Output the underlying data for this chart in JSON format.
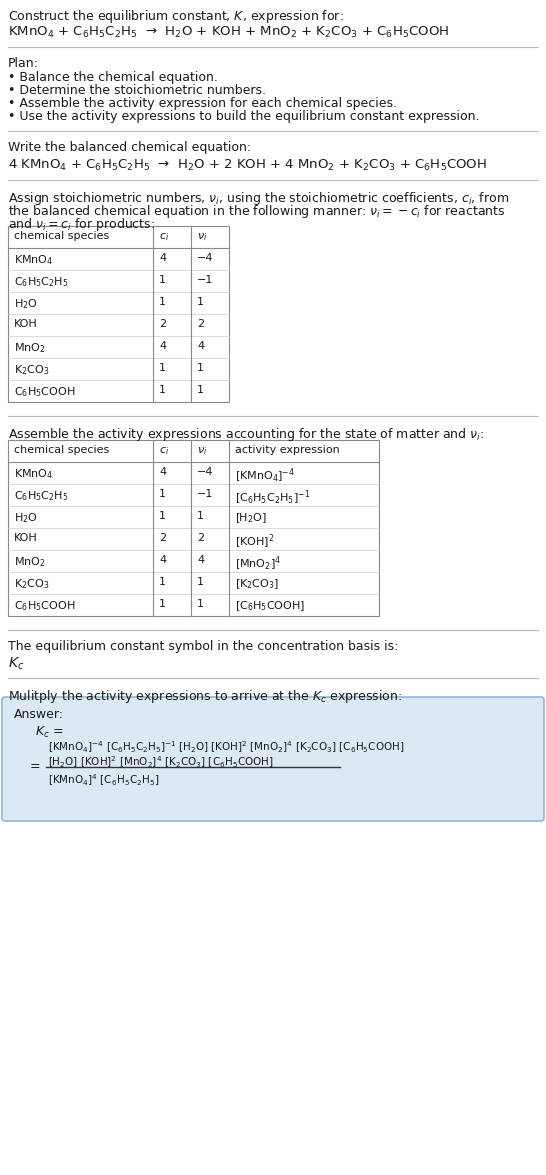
{
  "title_line1": "Construct the equilibrium constant, $K$, expression for:",
  "title_line2": "KMnO$_4$ + C$_6$H$_5$C$_2$H$_5$  →  H$_2$O + KOH + MnO$_2$ + K$_2$CO$_3$ + C$_6$H$_5$COOH",
  "plan_header": "Plan:",
  "plan_items": [
    "• Balance the chemical equation.",
    "• Determine the stoichiometric numbers.",
    "• Assemble the activity expression for each chemical species.",
    "• Use the activity expressions to build the equilibrium constant expression."
  ],
  "balanced_header": "Write the balanced chemical equation:",
  "balanced_eq": "4 KMnO$_4$ + C$_6$H$_5$C$_2$H$_5$  →  H$_2$O + 2 KOH + 4 MnO$_2$ + K$_2$CO$_3$ + C$_6$H$_5$COOH",
  "stoich_header1": "Assign stoichiometric numbers, $\\nu_i$, using the stoichiometric coefficients, $c_i$, from",
  "stoich_header2": "the balanced chemical equation in the following manner: $\\nu_i = -c_i$ for reactants",
  "stoich_header3": "and $\\nu_i = c_i$ for products:",
  "table1_headers": [
    "chemical species",
    "$c_i$",
    "$\\nu_i$"
  ],
  "table1_rows": [
    [
      "KMnO$_4$",
      "4",
      "−4"
    ],
    [
      "C$_6$H$_5$C$_2$H$_5$",
      "1",
      "−1"
    ],
    [
      "H$_2$O",
      "1",
      "1"
    ],
    [
      "KOH",
      "2",
      "2"
    ],
    [
      "MnO$_2$",
      "4",
      "4"
    ],
    [
      "K$_2$CO$_3$",
      "1",
      "1"
    ],
    [
      "C$_6$H$_5$COOH",
      "1",
      "1"
    ]
  ],
  "activity_header": "Assemble the activity expressions accounting for the state of matter and $\\nu_i$:",
  "table2_headers": [
    "chemical species",
    "$c_i$",
    "$\\nu_i$",
    "activity expression"
  ],
  "table2_rows": [
    [
      "KMnO$_4$",
      "4",
      "−4",
      "[KMnO$_4$]$^{-4}$"
    ],
    [
      "C$_6$H$_5$C$_2$H$_5$",
      "1",
      "−1",
      "[C$_6$H$_5$C$_2$H$_5$]$^{-1}$"
    ],
    [
      "H$_2$O",
      "1",
      "1",
      "[H$_2$O]"
    ],
    [
      "KOH",
      "2",
      "2",
      "[KOH]$^2$"
    ],
    [
      "MnO$_2$",
      "4",
      "4",
      "[MnO$_2$]$^4$"
    ],
    [
      "K$_2$CO$_3$",
      "1",
      "1",
      "[K$_2$CO$_3$]"
    ],
    [
      "C$_6$H$_5$COOH",
      "1",
      "1",
      "[C$_6$H$_5$COOH]"
    ]
  ],
  "kc_header": "The equilibrium constant symbol in the concentration basis is:",
  "kc_symbol": "$K_c$",
  "multiply_header": "Mulitply the activity expressions to arrive at the $K_c$ expression:",
  "answer_label": "Answer:",
  "answer_kc_eq": "$K_c$ =",
  "answer_line2": "[KMnO$_4$]$^{-4}$ [C$_6$H$_5$C$_2$H$_5$]$^{-1}$ [H$_2$O] [KOH]$^2$ [MnO$_2$]$^4$ [K$_2$CO$_3$] [C$_6$H$_5$COOH]",
  "answer_eq_sign": "=",
  "answer_num": "[H$_2$O] [KOH]$^2$ [MnO$_2$]$^4$ [K$_2$CO$_3$] [C$_6$H$_5$COOH]",
  "answer_den": "[KMnO$_4$]$^4$ [C$_6$H$_5$C$_2$H$_5$]",
  "bg_color": "#ffffff",
  "answer_box_color": "#dce9f5",
  "border_color": "#90b8d8",
  "table_border_color": "#888888",
  "table_inner_color": "#cccccc",
  "sep_line_color": "#bbbbbb",
  "text_color": "#1a1a1a",
  "font_size": 9,
  "small_font": 8,
  "fig_width": 5.46,
  "fig_height": 11.75,
  "dpi": 100
}
